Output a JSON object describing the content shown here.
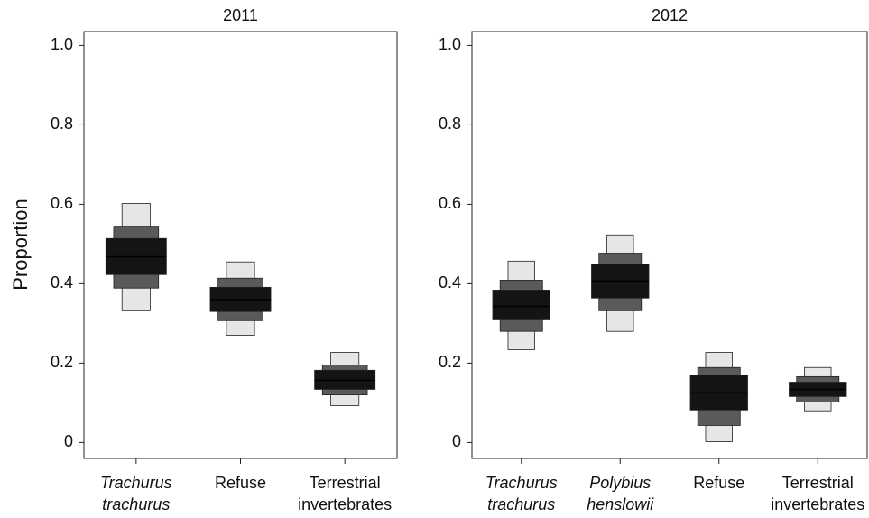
{
  "chart_data": [
    {
      "type": "interval-box",
      "title": "2011",
      "ylabel": "Proportion",
      "categories": [
        [
          "Trachurus",
          "trachurus"
        ],
        [
          "Refuse"
        ],
        [
          "Terrestrial",
          "invertebrates"
        ]
      ],
      "italic": [
        true,
        false,
        false
      ],
      "series": [
        {
          "color": "#e6e6e6",
          "low": [
            0.332,
            0.27,
            0.093
          ],
          "high": [
            0.602,
            0.455,
            0.227
          ]
        },
        {
          "color": "#5a5a5a",
          "low": [
            0.389,
            0.307,
            0.12
          ],
          "high": [
            0.545,
            0.414,
            0.195
          ]
        },
        {
          "color": "#141414",
          "low": [
            0.423,
            0.33,
            0.134
          ],
          "high": [
            0.514,
            0.391,
            0.182
          ]
        }
      ],
      "mode": [
        0.468,
        0.36,
        0.157
      ],
      "ylim": [
        -0.04,
        1.035
      ],
      "yticks": [
        0,
        {
          "value": 0.2,
          "label": "0.2"
        },
        {
          "value": 0.4,
          "label": "0.4"
        },
        {
          "value": 0.6,
          "label": "0.6"
        },
        {
          "value": 0.8,
          "label": "0.8"
        },
        {
          "value": 1.0,
          "label": "1.0"
        }
      ]
    },
    {
      "type": "interval-box",
      "title": "2012",
      "categories": [
        [
          "Trachurus",
          "trachurus"
        ],
        [
          "Polybius",
          "henslowii"
        ],
        [
          "Refuse"
        ],
        [
          "Terrestrial",
          "invertebrates"
        ]
      ],
      "italic": [
        true,
        true,
        false,
        false
      ],
      "series": [
        {
          "color": "#e6e6e6",
          "low": [
            0.234,
            0.28,
            0.002,
            0.08
          ],
          "high": [
            0.457,
            0.523,
            0.227,
            0.189
          ]
        },
        {
          "color": "#5a5a5a",
          "low": [
            0.28,
            0.332,
            0.043,
            0.102
          ],
          "high": [
            0.409,
            0.477,
            0.189,
            0.166
          ]
        },
        {
          "color": "#141414",
          "low": [
            0.309,
            0.364,
            0.082,
            0.116
          ],
          "high": [
            0.384,
            0.45,
            0.17,
            0.152
          ]
        }
      ],
      "mode": [
        0.343,
        0.407,
        0.125,
        0.134
      ],
      "ylim": [
        -0.04,
        1.035
      ],
      "yticks": [
        0,
        {
          "value": 0.2,
          "label": "0.2"
        },
        {
          "value": 0.4,
          "label": "0.4"
        },
        {
          "value": 0.6,
          "label": "0.6"
        },
        {
          "value": 0.8,
          "label": "0.8"
        },
        {
          "value": 1.0,
          "label": "1.0"
        }
      ]
    }
  ]
}
